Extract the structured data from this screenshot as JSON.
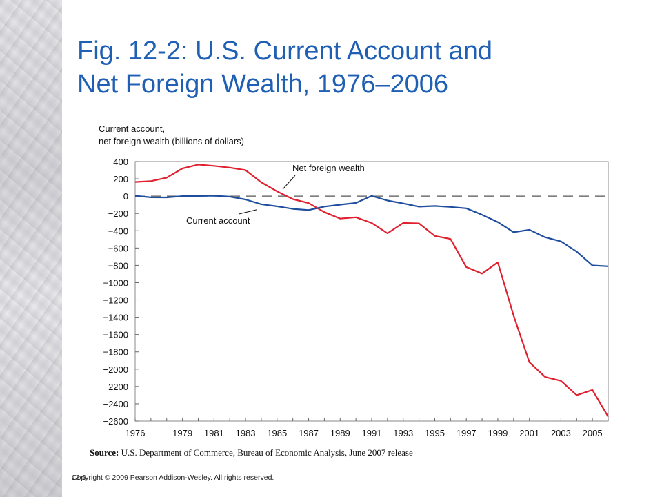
{
  "slide": {
    "title_line1": "Fig. 12-2: U.S. Current Account and",
    "title_line2": "Net Foreign Wealth, 1976–2006",
    "source_label": "Source:",
    "source_text": "U.S. Department of Commerce, Bureau of Economic Analysis, June 2007 release",
    "copyright": "Copyright © 2009 Pearson Addison-Wesley. All rights reserved.",
    "slide_number": "12-9"
  },
  "colors": {
    "title": "#1f5fb4",
    "current_account": "#1f4e9e",
    "net_foreign_wealth": "#e0202e",
    "zero_line": "#555555"
  },
  "chart_data": {
    "type": "line",
    "ylabel_line1": "Current account,",
    "ylabel_line2": "net foreign wealth (billions of dollars)",
    "xlabel": "",
    "ylim": [
      -2600,
      400
    ],
    "xlim": [
      1976,
      2006
    ],
    "y_ticks": [
      400,
      200,
      0,
      -200,
      -400,
      -600,
      -800,
      -1000,
      -1200,
      -1400,
      -1600,
      -1800,
      -2000,
      -2200,
      -2400,
      -2600
    ],
    "y_tick_labels": [
      "400",
      "200",
      "0",
      "−200",
      "−400",
      "−600",
      "−800",
      "−1000",
      "−1200",
      "−1400",
      "−1600",
      "−1800",
      "−2000",
      "−2200",
      "−2400",
      "−2600"
    ],
    "x_ticks": [
      1976,
      1979,
      1981,
      1983,
      1985,
      1987,
      1989,
      1991,
      1993,
      1995,
      1997,
      1999,
      2001,
      2003,
      2005
    ],
    "x_tick_labels": [
      "1976",
      "1979",
      "1981",
      "1983",
      "1985",
      "1987",
      "1989",
      "1991",
      "1993",
      "1995",
      "1997",
      "1999",
      "2001",
      "2003",
      "2005"
    ],
    "grid": false,
    "series": [
      {
        "name": "Net foreign wealth",
        "x": [
          1976,
          1977,
          1978,
          1979,
          1980,
          1981,
          1982,
          1983,
          1984,
          1985,
          1986,
          1987,
          1988,
          1989,
          1990,
          1991,
          1992,
          1993,
          1994,
          1995,
          1996,
          1997,
          1998,
          1999,
          2000,
          2001,
          2002,
          2003,
          2004,
          2005,
          2006
        ],
        "values": [
          164,
          174,
          213,
          320,
          365,
          350,
          330,
          300,
          160,
          55,
          -35,
          -80,
          -185,
          -260,
          -245,
          -310,
          -430,
          -310,
          -315,
          -460,
          -495,
          -820,
          -895,
          -765,
          -1380,
          -1920,
          -2090,
          -2135,
          -2300,
          -2240,
          -2550
        ]
      },
      {
        "name": "Current account",
        "x": [
          1976,
          1977,
          1978,
          1979,
          1980,
          1981,
          1982,
          1983,
          1984,
          1985,
          1986,
          1987,
          1988,
          1989,
          1990,
          1991,
          1992,
          1993,
          1994,
          1995,
          1996,
          1997,
          1998,
          1999,
          2000,
          2001,
          2002,
          2003,
          2004,
          2005,
          2006
        ],
        "values": [
          4,
          -14,
          -15,
          0,
          2,
          5,
          -6,
          -39,
          -94,
          -118,
          -147,
          -161,
          -121,
          -99,
          -79,
          3,
          -51,
          -84,
          -122,
          -114,
          -125,
          -141,
          -215,
          -300,
          -417,
          -389,
          -475,
          -523,
          -641,
          -801,
          -811
        ]
      }
    ],
    "annotations": [
      {
        "text": "Net foreign wealth"
      },
      {
        "text": "Current account"
      }
    ]
  }
}
